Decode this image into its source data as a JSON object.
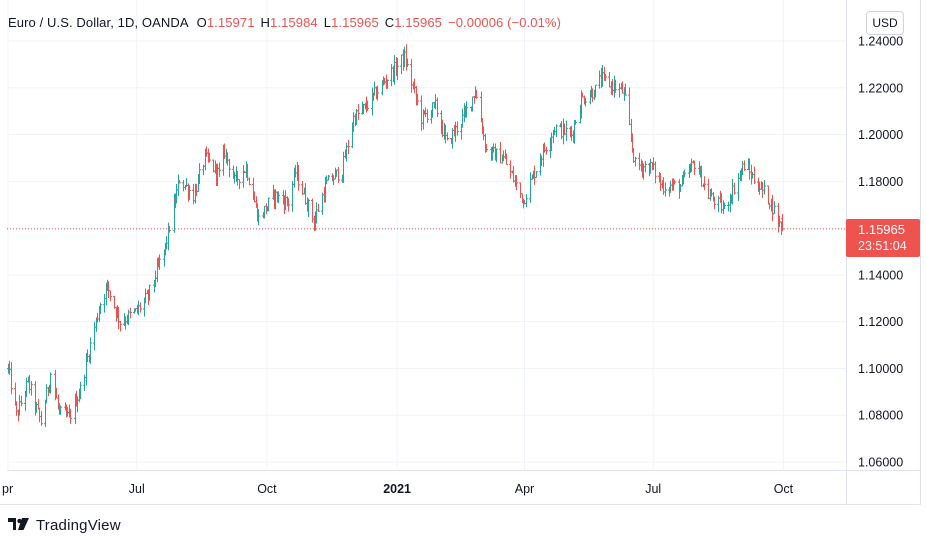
{
  "legend": {
    "symbol": "Euro / U.S. Dollar, 1D, OANDA",
    "open_label": "O",
    "open": "1.15971",
    "high_label": "H",
    "high": "1.15984",
    "low_label": "L",
    "low": "1.15965",
    "close_label": "C",
    "close": "1.15965",
    "change": "−0.00006 (−0.01%)"
  },
  "currency": "USD",
  "price_tag": {
    "price": "1.15965",
    "countdown": "23:51:04"
  },
  "brand": {
    "name": "TradingView",
    "icon": "tradingview-logo-icon"
  },
  "colors": {
    "up": "#26a69a",
    "down": "#ef5350",
    "grid": "#f0f3fa",
    "price_line": "#ef5350"
  },
  "chart_data": {
    "type": "ohlc",
    "ylim": [
      1.055,
      1.245
    ],
    "y_ticks": [
      "1.24000",
      "1.22000",
      "1.20000",
      "1.18000",
      "1.16000",
      "1.14000",
      "1.12000",
      "1.10000",
      "1.08000",
      "1.06000"
    ],
    "x_ticks": [
      {
        "label": "pr",
        "bold": false
      },
      {
        "label": "Jul",
        "bold": false
      },
      {
        "label": "Oct",
        "bold": false
      },
      {
        "label": "2021",
        "bold": true
      },
      {
        "label": "Apr",
        "bold": false
      },
      {
        "label": "Jul",
        "bold": false
      },
      {
        "label": "Oct",
        "bold": false
      }
    ],
    "last_price": 1.15965,
    "anchors": [
      [
        "2020-04-01",
        1.1
      ],
      [
        "2020-04-07",
        1.08
      ],
      [
        "2020-04-15",
        1.094
      ],
      [
        "2020-04-24",
        1.077
      ],
      [
        "2020-05-01",
        1.098
      ],
      [
        "2020-05-07",
        1.081
      ],
      [
        "2020-05-14",
        1.079
      ],
      [
        "2020-05-22",
        1.091
      ],
      [
        "2020-05-29",
        1.11
      ],
      [
        "2020-06-05",
        1.128
      ],
      [
        "2020-06-10",
        1.135
      ],
      [
        "2020-06-19",
        1.12
      ],
      [
        "2020-06-30",
        1.124
      ],
      [
        "2020-07-09",
        1.131
      ],
      [
        "2020-07-21",
        1.152
      ],
      [
        "2020-07-31",
        1.181
      ],
      [
        "2020-08-10",
        1.174
      ],
      [
        "2020-08-18",
        1.19
      ],
      [
        "2020-08-28",
        1.183
      ],
      [
        "2020-09-01",
        1.193
      ],
      [
        "2020-09-08",
        1.18
      ],
      [
        "2020-09-16",
        1.186
      ],
      [
        "2020-09-25",
        1.164
      ],
      [
        "2020-10-06",
        1.174
      ],
      [
        "2020-10-16",
        1.171
      ],
      [
        "2020-10-21",
        1.184
      ],
      [
        "2020-11-03",
        1.163
      ],
      [
        "2020-11-12",
        1.179
      ],
      [
        "2020-11-23",
        1.185
      ],
      [
        "2020-12-01",
        1.207
      ],
      [
        "2020-12-10",
        1.212
      ],
      [
        "2020-12-22",
        1.222
      ],
      [
        "2021-01-06",
        1.233
      ],
      [
        "2021-01-18",
        1.207
      ],
      [
        "2021-01-28",
        1.212
      ],
      [
        "2021-02-05",
        1.196
      ],
      [
        "2021-02-18",
        1.209
      ],
      [
        "2021-02-25",
        1.219
      ],
      [
        "2021-03-05",
        1.193
      ],
      [
        "2021-03-17",
        1.19
      ],
      [
        "2021-03-31",
        1.172
      ],
      [
        "2021-04-12",
        1.19
      ],
      [
        "2021-04-22",
        1.203
      ],
      [
        "2021-05-04",
        1.2
      ],
      [
        "2021-05-11",
        1.215
      ],
      [
        "2021-05-21",
        1.219
      ],
      [
        "2021-05-25",
        1.224
      ],
      [
        "2021-06-10",
        1.218
      ],
      [
        "2021-06-18",
        1.187
      ],
      [
        "2021-06-30",
        1.186
      ],
      [
        "2021-07-07",
        1.178
      ],
      [
        "2021-07-20",
        1.178
      ],
      [
        "2021-07-30",
        1.188
      ],
      [
        "2021-08-09",
        1.174
      ],
      [
        "2021-08-20",
        1.168
      ],
      [
        "2021-09-03",
        1.187
      ],
      [
        "2021-09-10",
        1.181
      ],
      [
        "2021-09-21",
        1.172
      ],
      [
        "2021-09-29",
        1.16
      ],
      [
        "2021-09-30",
        1.15965
      ]
    ]
  }
}
